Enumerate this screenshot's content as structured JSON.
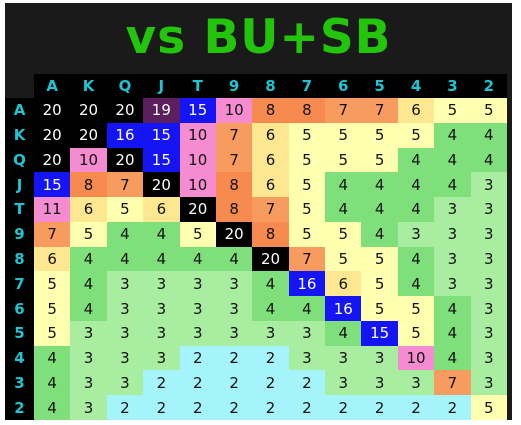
{
  "title": "vs BU+SB",
  "columns": [
    "A",
    "K",
    "Q",
    "J",
    "T",
    "9",
    "8",
    "7",
    "6",
    "5",
    "4",
    "3",
    "2"
  ],
  "rows": [
    "A",
    "K",
    "Q",
    "J",
    "T",
    "9",
    "8",
    "7",
    "6",
    "5",
    "4",
    "3",
    "2"
  ],
  "values": [
    [
      20,
      20,
      20,
      19,
      15,
      10,
      8,
      8,
      7,
      7,
      6,
      5,
      5
    ],
    [
      20,
      20,
      16,
      15,
      10,
      7,
      6,
      5,
      5,
      5,
      5,
      4,
      4
    ],
    [
      20,
      10,
      20,
      15,
      10,
      7,
      6,
      5,
      5,
      5,
      4,
      4,
      4
    ],
    [
      15,
      8,
      7,
      20,
      10,
      8,
      6,
      5,
      4,
      4,
      4,
      4,
      3
    ],
    [
      11,
      6,
      5,
      6,
      20,
      8,
      7,
      5,
      4,
      4,
      4,
      3,
      3
    ],
    [
      7,
      5,
      4,
      4,
      5,
      20,
      8,
      5,
      5,
      4,
      3,
      3,
      3
    ],
    [
      6,
      4,
      4,
      4,
      4,
      4,
      20,
      7,
      5,
      5,
      4,
      3,
      3
    ],
    [
      5,
      4,
      3,
      3,
      3,
      3,
      4,
      16,
      6,
      5,
      4,
      3,
      3
    ],
    [
      5,
      4,
      3,
      3,
      3,
      3,
      4,
      4,
      16,
      5,
      5,
      4,
      3
    ],
    [
      5,
      3,
      3,
      3,
      3,
      3,
      3,
      3,
      4,
      15,
      5,
      4,
      3
    ],
    [
      4,
      3,
      3,
      3,
      2,
      2,
      2,
      3,
      3,
      3,
      10,
      4,
      3
    ],
    [
      4,
      3,
      3,
      2,
      2,
      2,
      2,
      2,
      3,
      3,
      3,
      7,
      3
    ],
    [
      4,
      3,
      2,
      2,
      2,
      2,
      2,
      2,
      2,
      2,
      2,
      2,
      5
    ]
  ],
  "colors": {
    "title": "#22c40c",
    "header_text": "#1fc4d2",
    "background": "#1a1a1a",
    "scale": {
      "2": "#a6f4fb",
      "3": "#a9eda0",
      "4": "#7fe07b",
      "5": "#ffffb0",
      "6": "#fde891",
      "7": "#f89b5e",
      "8": "#f78a4f",
      "10": "#f58bd1",
      "11": "#f58bd1",
      "15": "#1414f5",
      "16": "#1414f5",
      "19": "#5a1f5c",
      "20": "#000000"
    }
  }
}
